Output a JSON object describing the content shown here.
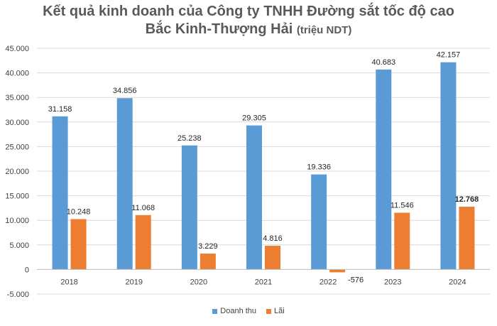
{
  "chart_data": {
    "type": "bar",
    "title_line1": "Kết quả kinh doanh của Công ty TNHH Đường sắt tốc độ cao",
    "title_line2": "Bắc Kinh-Thượng Hải",
    "title_unit": "(triệu NDT)",
    "categories": [
      "2018",
      "2019",
      "2020",
      "2021",
      "2022",
      "2023",
      "2024"
    ],
    "series": [
      {
        "name": "Doanh thu",
        "color": "#5B9BD5",
        "values": [
          31158,
          34856,
          25238,
          29305,
          19336,
          40683,
          42157
        ],
        "labels": [
          "31.158",
          "34.856",
          "25.238",
          "29.305",
          "19.336",
          "40.683",
          "42.157"
        ]
      },
      {
        "name": "Lãi",
        "color": "#ED7D31",
        "values": [
          10248,
          11068,
          3229,
          4816,
          -576,
          11546,
          12768
        ],
        "labels": [
          "10.248",
          "11.068",
          "3.229",
          "4.816",
          "-576",
          "11.546",
          "12.768"
        ]
      }
    ],
    "ylim": [
      -5000,
      45000
    ],
    "yticks": [
      -5000,
      0,
      5000,
      10000,
      15000,
      20000,
      25000,
      30000,
      35000,
      40000,
      45000
    ],
    "ytick_labels": [
      "-5.000",
      "0",
      "5.000",
      "10.000",
      "15.000",
      "20.000",
      "25.000",
      "30.000",
      "35.000",
      "40.000",
      "45.000"
    ],
    "grid": true,
    "legend_position": "bottom"
  }
}
